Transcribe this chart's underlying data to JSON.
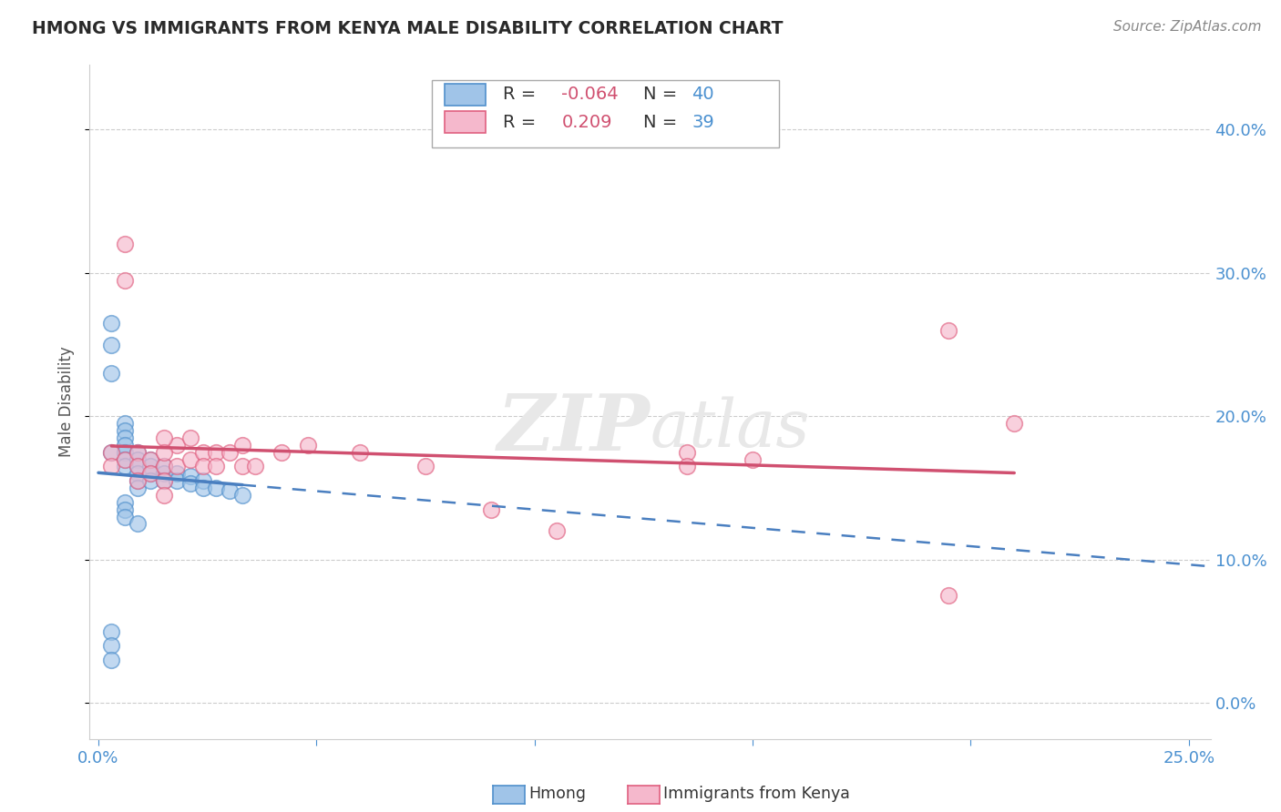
{
  "title": "HMONG VS IMMIGRANTS FROM KENYA MALE DISABILITY CORRELATION CHART",
  "source": "Source: ZipAtlas.com",
  "ylabel": "Male Disability",
  "watermark": "ZIPatlas",
  "legend_r_hmong": "-0.064",
  "legend_n_hmong": "40",
  "legend_r_kenya": "0.209",
  "legend_n_kenya": "39",
  "xlim": [
    -0.002,
    0.255
  ],
  "ylim": [
    -0.025,
    0.445
  ],
  "xticks": [
    0.0,
    0.05,
    0.1,
    0.15,
    0.2,
    0.25
  ],
  "yticks": [
    0.0,
    0.1,
    0.2,
    0.3,
    0.4
  ],
  "color_hmong_fill": "#a0c4e8",
  "color_hmong_edge": "#5090cc",
  "color_kenya_fill": "#f5b8cc",
  "color_kenya_edge": "#e06080",
  "color_hmong_line": "#4a7fc0",
  "color_kenya_line": "#d05070",
  "color_axis": "#4a90d0",
  "color_text_dark": "#333333",
  "hmong_x": [
    0.003,
    0.003,
    0.003,
    0.003,
    0.006,
    0.006,
    0.006,
    0.006,
    0.006,
    0.006,
    0.006,
    0.009,
    0.009,
    0.009,
    0.009,
    0.009,
    0.009,
    0.012,
    0.012,
    0.012,
    0.012,
    0.015,
    0.015,
    0.015,
    0.018,
    0.018,
    0.021,
    0.021,
    0.024,
    0.024,
    0.027,
    0.03,
    0.033,
    0.003,
    0.003,
    0.003,
    0.006,
    0.006,
    0.006,
    0.009
  ],
  "hmong_y": [
    0.265,
    0.25,
    0.23,
    0.175,
    0.195,
    0.19,
    0.185,
    0.18,
    0.175,
    0.17,
    0.165,
    0.175,
    0.17,
    0.165,
    0.16,
    0.155,
    0.15,
    0.17,
    0.165,
    0.16,
    0.155,
    0.165,
    0.16,
    0.155,
    0.16,
    0.155,
    0.158,
    0.153,
    0.155,
    0.15,
    0.15,
    0.148,
    0.145,
    0.05,
    0.04,
    0.03,
    0.14,
    0.135,
    0.13,
    0.125
  ],
  "kenya_x": [
    0.003,
    0.003,
    0.006,
    0.006,
    0.006,
    0.009,
    0.009,
    0.009,
    0.012,
    0.012,
    0.015,
    0.015,
    0.015,
    0.018,
    0.018,
    0.021,
    0.021,
    0.024,
    0.024,
    0.027,
    0.027,
    0.03,
    0.033,
    0.033,
    0.036,
    0.042,
    0.048,
    0.06,
    0.075,
    0.09,
    0.105,
    0.15,
    0.195,
    0.21,
    0.195,
    0.135,
    0.135,
    0.015,
    0.015
  ],
  "kenya_y": [
    0.175,
    0.165,
    0.32,
    0.295,
    0.17,
    0.175,
    0.165,
    0.155,
    0.17,
    0.16,
    0.165,
    0.155,
    0.145,
    0.18,
    0.165,
    0.185,
    0.17,
    0.175,
    0.165,
    0.175,
    0.165,
    0.175,
    0.18,
    0.165,
    0.165,
    0.175,
    0.18,
    0.175,
    0.165,
    0.135,
    0.12,
    0.17,
    0.26,
    0.195,
    0.075,
    0.175,
    0.165,
    0.185,
    0.175
  ]
}
